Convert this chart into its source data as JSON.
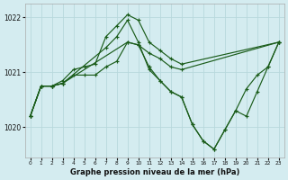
{
  "title": "Graphe pression niveau de la mer (hPa)",
  "bg_color": "#d4ecf0",
  "grid_color": "#b8d8dc",
  "line_color": "#1a5c1a",
  "marker_color": "#1a5c1a",
  "xlim": [
    -0.5,
    23.5
  ],
  "ylim": [
    1019.45,
    1022.25
  ],
  "yticks": [
    1020,
    1021,
    1022
  ],
  "xticks": [
    0,
    1,
    2,
    3,
    4,
    5,
    6,
    7,
    8,
    9,
    10,
    11,
    12,
    13,
    14,
    15,
    16,
    17,
    18,
    19,
    20,
    21,
    22,
    23
  ],
  "series": [
    {
      "x": [
        0,
        1,
        2,
        3,
        4,
        5,
        6,
        7,
        8,
        9,
        10,
        11,
        12,
        13,
        14,
        23
      ],
      "y": [
        1020.2,
        1020.75,
        1020.75,
        1020.85,
        1021.05,
        1021.1,
        1021.15,
        1021.65,
        1021.85,
        1022.05,
        1021.95,
        1021.55,
        1021.4,
        1021.25,
        1021.15,
        1021.55
      ]
    },
    {
      "x": [
        0,
        1,
        2,
        3,
        4,
        5,
        6,
        7,
        8,
        9,
        10,
        11,
        12,
        13,
        14,
        23
      ],
      "y": [
        1020.2,
        1020.75,
        1020.75,
        1020.8,
        1020.95,
        1020.95,
        1020.95,
        1021.1,
        1021.2,
        1021.55,
        1021.5,
        1021.35,
        1021.25,
        1021.1,
        1021.05,
        1021.55
      ]
    },
    {
      "x": [
        0,
        1,
        2,
        3,
        9,
        10,
        11,
        12,
        13,
        14,
        15,
        16,
        17,
        18,
        19,
        20,
        21,
        22,
        23
      ],
      "y": [
        1020.2,
        1020.75,
        1020.75,
        1020.8,
        1021.55,
        1021.5,
        1021.1,
        1020.85,
        1020.65,
        1020.55,
        1020.05,
        1019.75,
        1019.6,
        1019.95,
        1020.3,
        1020.7,
        1020.95,
        1021.1,
        1021.55
      ]
    },
    {
      "x": [
        0,
        1,
        2,
        3,
        7,
        8,
        9,
        10,
        11,
        12,
        13,
        14,
        15,
        16,
        17,
        18,
        19,
        20,
        21,
        22,
        23
      ],
      "y": [
        1020.2,
        1020.75,
        1020.75,
        1020.8,
        1021.45,
        1021.65,
        1021.95,
        1021.55,
        1021.05,
        1020.85,
        1020.65,
        1020.55,
        1020.05,
        1019.75,
        1019.6,
        1019.95,
        1020.3,
        1020.2,
        1020.65,
        1021.1,
        1021.55
      ]
    }
  ]
}
